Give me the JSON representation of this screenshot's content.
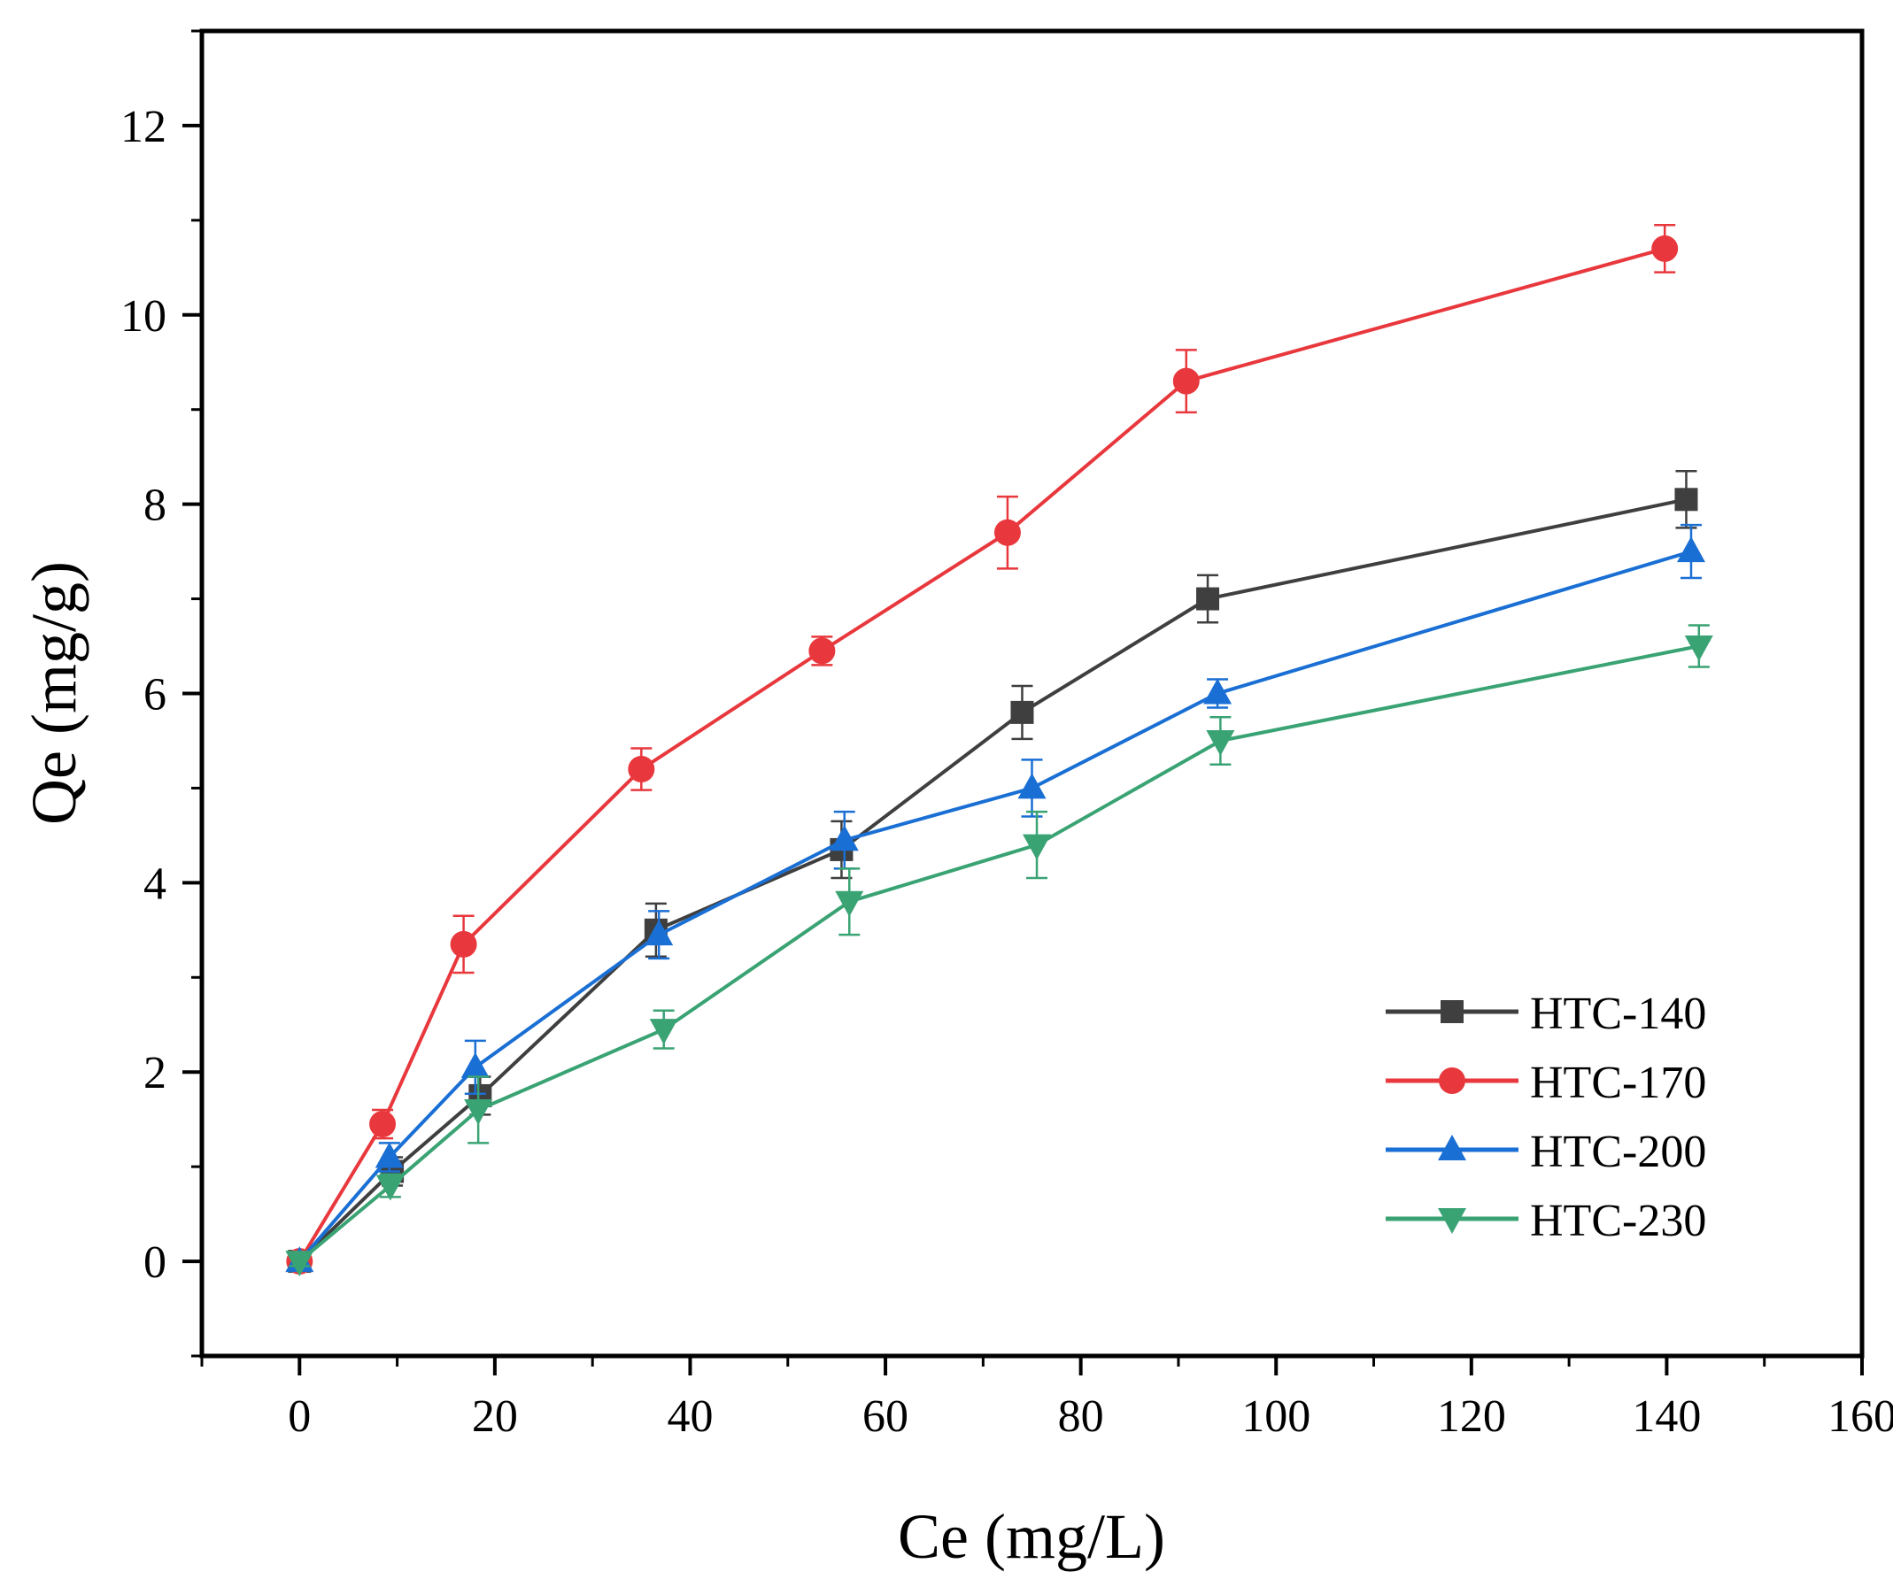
{
  "chart_data": {
    "type": "line",
    "title": "",
    "xlabel": "Ce (mg/L)",
    "ylabel": "Qe (mg/g)",
    "xlim": [
      -10,
      160
    ],
    "ylim": [
      -1,
      13
    ],
    "xticks": [
      0,
      20,
      40,
      60,
      80,
      100,
      120,
      140,
      160
    ],
    "yticks": [
      0,
      2,
      4,
      6,
      8,
      10,
      12
    ],
    "grid": false,
    "legend_position": "bottom-right",
    "error_bars": true,
    "series": [
      {
        "name": "HTC-140",
        "color": "#3f3f3f",
        "marker": "square",
        "x": [
          0,
          9.5,
          18.5,
          36.5,
          55.5,
          74,
          93,
          142
        ],
        "y": [
          0,
          0.95,
          1.75,
          3.5,
          4.35,
          5.8,
          7.0,
          8.05
        ],
        "err": [
          0.05,
          0.15,
          0.2,
          0.28,
          0.3,
          0.28,
          0.25,
          0.3
        ]
      },
      {
        "name": "HTC-170",
        "color": "#e8383d",
        "marker": "circle",
        "x": [
          0,
          8.5,
          16.8,
          35,
          53.5,
          72.5,
          90.8,
          139.8
        ],
        "y": [
          0,
          1.45,
          3.35,
          5.2,
          6.45,
          7.7,
          9.3,
          10.7
        ],
        "err": [
          0.05,
          0.15,
          0.3,
          0.22,
          0.15,
          0.38,
          0.33,
          0.25
        ]
      },
      {
        "name": "HTC-200",
        "color": "#1a6fd4",
        "marker": "triangle-up",
        "x": [
          0,
          9.2,
          18,
          36.8,
          55.8,
          75,
          94,
          142.5
        ],
        "y": [
          0,
          1.1,
          2.05,
          3.45,
          4.45,
          5.0,
          6.0,
          7.5
        ],
        "err": [
          0.05,
          0.15,
          0.28,
          0.25,
          0.3,
          0.3,
          0.15,
          0.28
        ]
      },
      {
        "name": "HTC-230",
        "color": "#3aa374",
        "marker": "triangle-down",
        "x": [
          0,
          9.3,
          18.3,
          37.3,
          56.3,
          75.5,
          94.3,
          143.3
        ],
        "y": [
          0,
          0.8,
          1.6,
          2.45,
          3.8,
          4.4,
          5.5,
          6.5
        ],
        "err": [
          0.05,
          0.12,
          0.35,
          0.2,
          0.35,
          0.35,
          0.25,
          0.22
        ]
      }
    ]
  }
}
